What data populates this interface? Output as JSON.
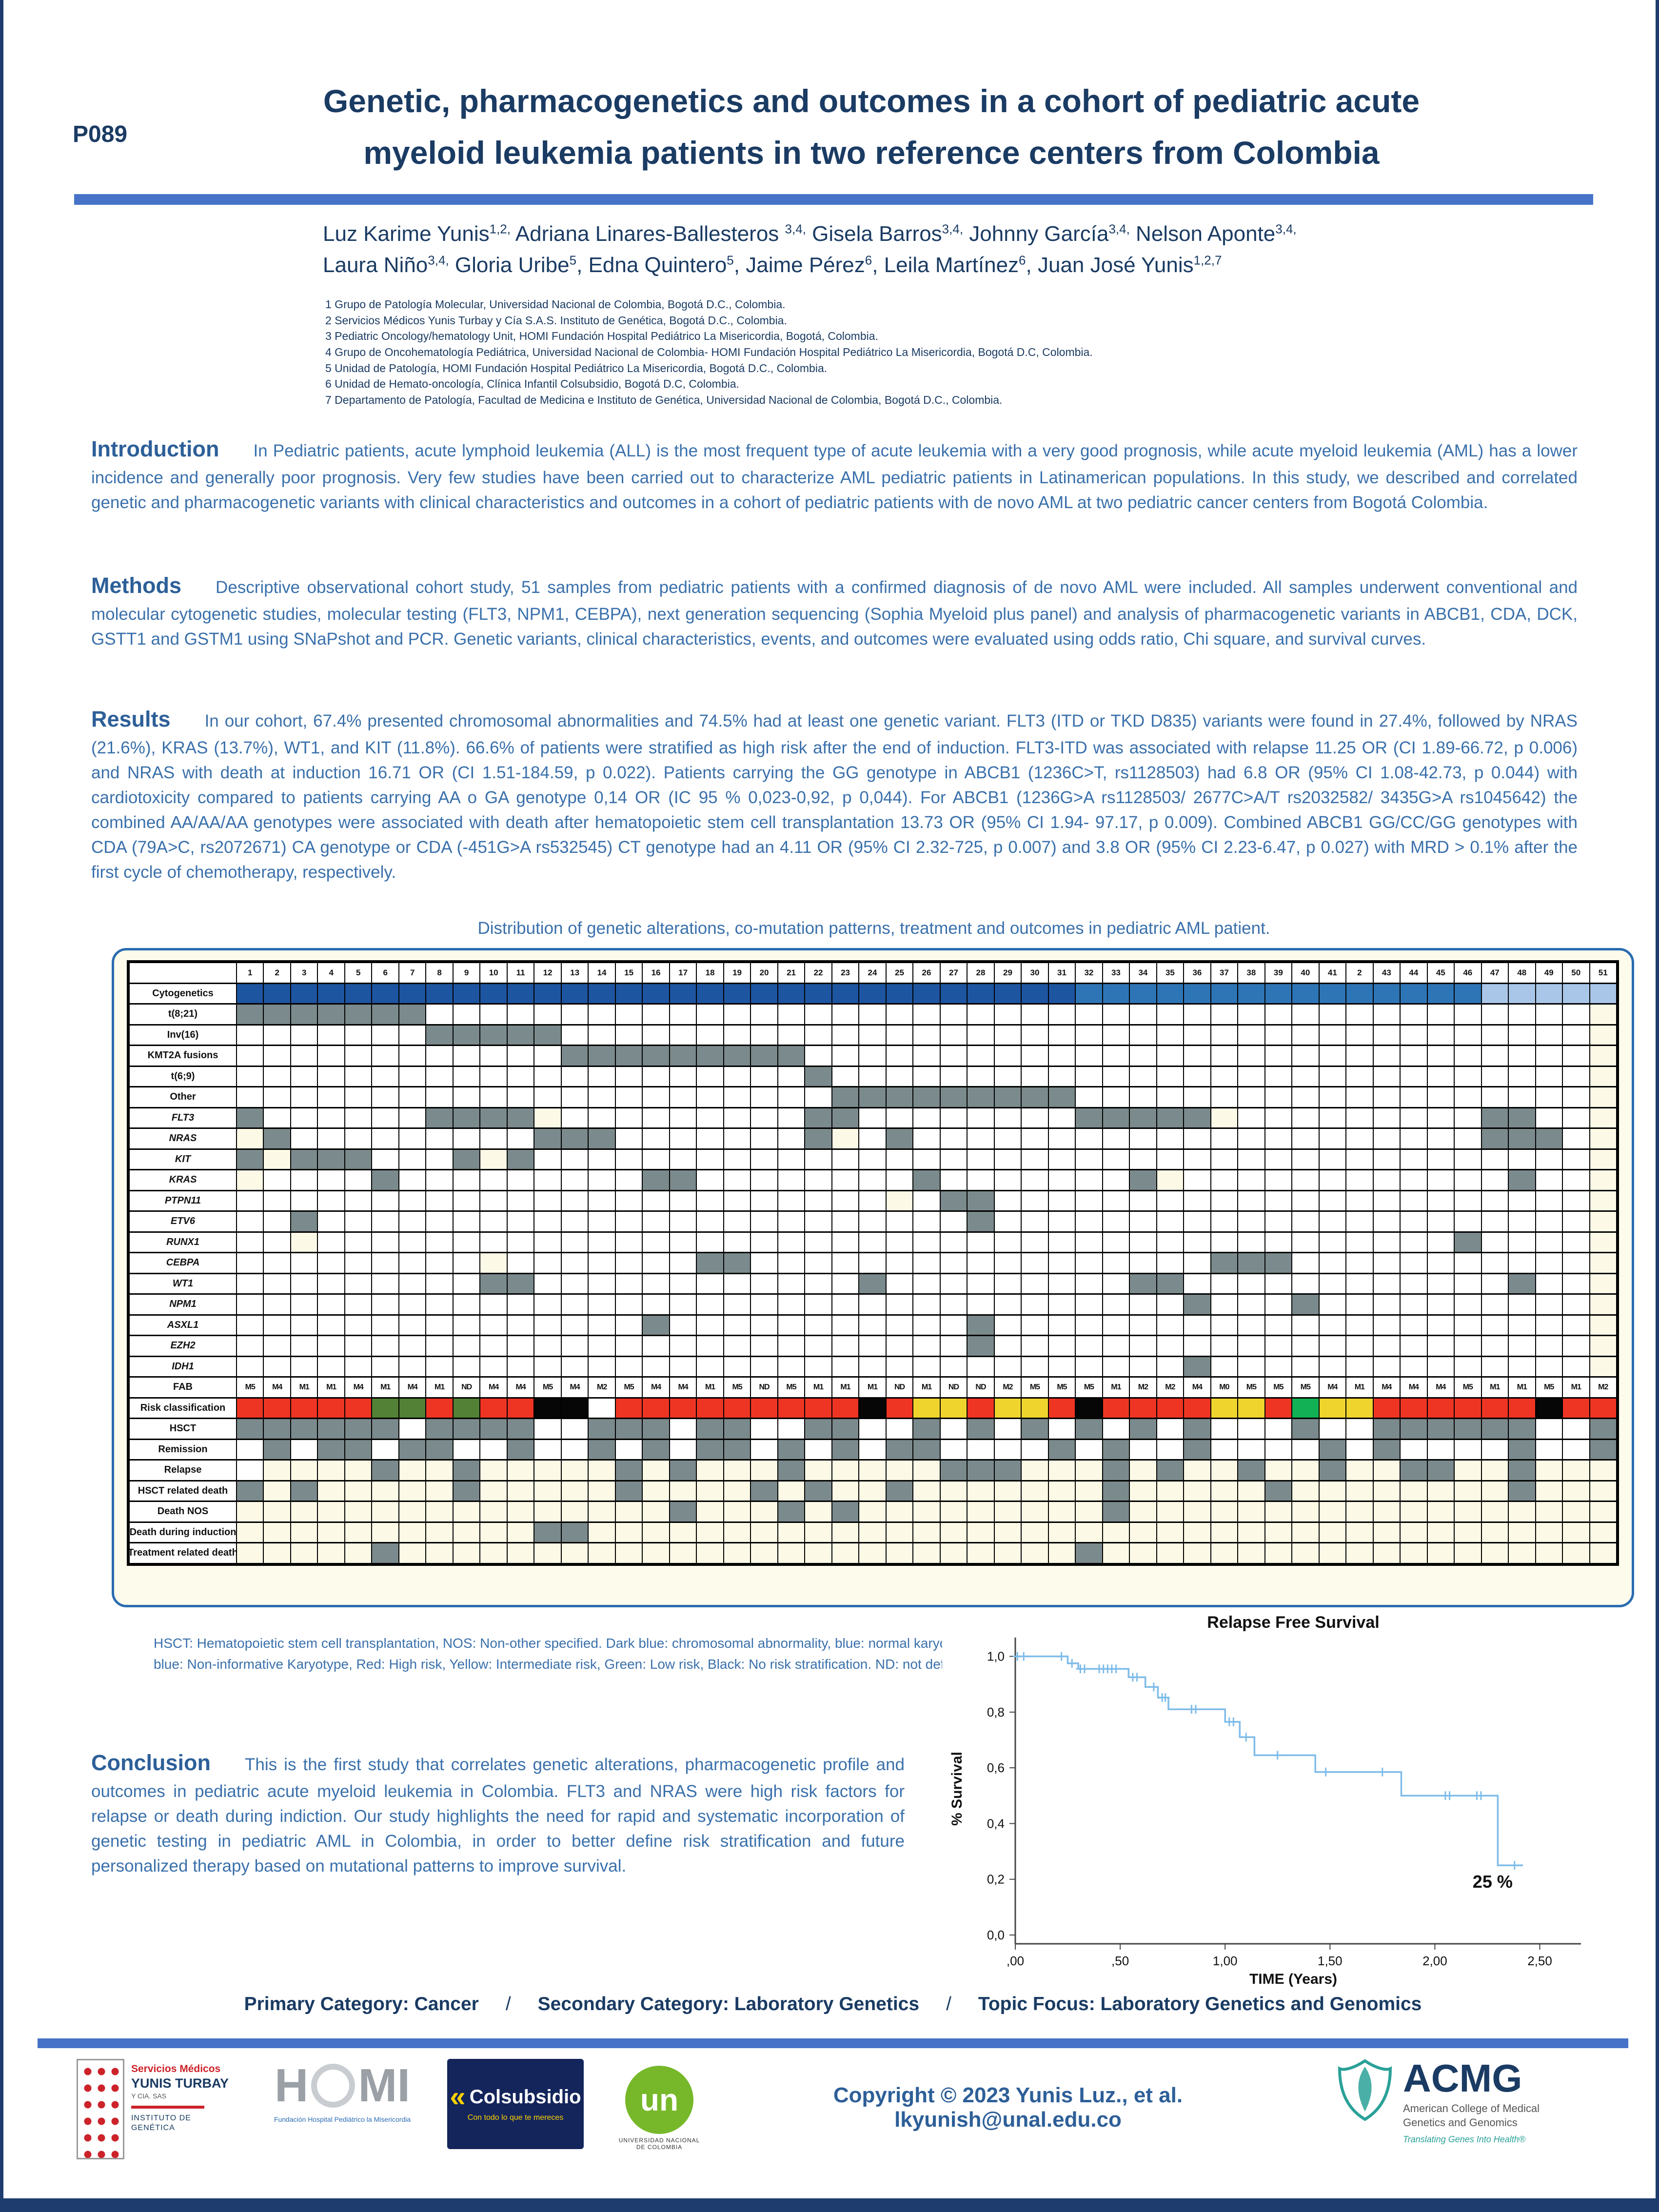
{
  "page": {
    "poster_id": "P089",
    "title_line1": "Genetic, pharmacogenetics and outcomes in a cohort of pediatric acute",
    "title_line2": "myeloid leukemia patients in two reference centers from Colombia"
  },
  "authors": {
    "lines": [
      [
        {
          "t": "Luz Karime Yunis",
          "s": "1,2,",
          "tail": " "
        },
        {
          "t": "Adriana Linares-Ballesteros ",
          "s": "3,4,",
          "tail": " "
        },
        {
          "t": "Gisela Barros",
          "s": "3,4,",
          "tail": " "
        },
        {
          "t": "Johnny García",
          "s": "3,4,",
          "tail": " "
        },
        {
          "t": "Nelson Aponte",
          "s": "3,4,",
          "tail": ""
        }
      ],
      [
        {
          "t": "Laura Niño",
          "s": "3,4,",
          "tail": " "
        },
        {
          "t": "Gloria Uribe",
          "s": "5",
          "tail": ", "
        },
        {
          "t": "Edna Quintero",
          "s": "5",
          "tail": ", "
        },
        {
          "t": "Jaime Pérez",
          "s": "6",
          "tail": ", "
        },
        {
          "t": "Leila Martínez",
          "s": "6",
          "tail": ", "
        },
        {
          "t": "Juan José Yunis",
          "s": "1,2,7",
          "tail": ""
        }
      ]
    ]
  },
  "affiliations": [
    "1 Grupo de Patología Molecular, Universidad Nacional de Colombia, Bogotá D.C., Colombia.",
    "2 Servicios Médicos Yunis Turbay y Cía S.A.S. Instituto de Genética, Bogotá D.C., Colombia.",
    "3 Pediatric Oncology/hematology Unit, HOMI Fundación Hospital Pediátrico La Misericordia, Bogotá, Colombia.",
    "4 Grupo de Oncohematología Pediátrica, Universidad Nacional de Colombia- HOMI Fundación Hospital Pediátrico La Misericordia, Bogotá D.C, Colombia.",
    "5 Unidad de Patología, HOMI Fundación Hospital Pediátrico La Misericordia, Bogotá D.C., Colombia.",
    "6 Unidad de Hemato-oncología, Clínica Infantil Colsubsidio, Bogotá D.C, Colombia.",
    "7 Departamento de Patología, Facultad de Medicina e Instituto de Genética, Universidad Nacional de Colombia, Bogotá D.C., Colombia."
  ],
  "sections": {
    "introduction": {
      "heading": "Introduction",
      "text": "In Pediatric patients, acute lymphoid leukemia (ALL) is the most frequent type of acute leukemia with a very good prognosis, while acute myeloid leukemia (AML) has a lower incidence and generally poor prognosis. Very few studies have been carried out to characterize AML pediatric patients in Latinamerican populations. In this study, we described and correlated genetic and pharmacogenetic variants with clinical characteristics and outcomes in a cohort of pediatric patients with de novo AML at two pediatric cancer centers from Bogotá Colombia."
    },
    "methods": {
      "heading": "Methods",
      "text": "Descriptive observational cohort study, 51 samples from pediatric patients with a confirmed diagnosis of de novo AML were included. All samples underwent conventional and molecular cytogenetic studies, molecular testing (FLT3, NPM1, CEBPA), next generation sequencing (Sophia Myeloid plus panel) and analysis of pharmacogenetic variants in ABCB1, CDA, DCK, GSTT1 and GSTM1 using SNaPshot and PCR. Genetic variants, clinical characteristics, events, and outcomes were evaluated using odds ratio, Chi square, and survival curves."
    },
    "results": {
      "heading": "Results",
      "text": "In our cohort, 67.4% presented chromosomal abnormalities and 74.5% had at least one genetic variant. FLT3 (ITD or TKD D835) variants were found in 27.4%, followed by NRAS (21.6%), KRAS (13.7%), WT1, and KIT (11.8%). 66.6% of patients were stratified as high risk after the end of induction. FLT3-ITD was associated with relapse 11.25 OR (CI 1.89-66.72, p 0.006) and NRAS with death at induction 16.71 OR (CI 1.51-184.59, p 0.022). Patients carrying the GG genotype in ABCB1 (1236C>T, rs1128503) had 6.8 OR (95% CI 1.08-42.73, p 0.044) with cardiotoxicity compared to patients carrying AA o GA genotype 0,14 OR (IC 95 % 0,023-0,92, p 0,044). For ABCB1 (1236G>A rs1128503/ 2677C>A/T rs2032582/ 3435G>A rs1045642) the combined AA/AA/AA genotypes were associated with death after hematopoietic stem cell transplantation 13.73 OR (95% CI 1.94- 97.17, p 0.009). Combined ABCB1 GG/CC/GG genotypes with CDA (79A>C, rs2072671) CA genotype or CDA (-451G>A rs532545) CT genotype had an 4.11 OR (95% CI 2.32-725, p 0.007) and 3.8 OR (95% CI 2.23-6.47, p 0.027) with MRD > 0.1% after the first cycle of chemotherapy, respectively."
    },
    "conclusion": {
      "heading": "Conclusion",
      "text": "This is the first study that correlates genetic alterations, pharmacogenetic profile and outcomes in pediatric acute myeloid leukemia in Colombia. FLT3 and NRAS were high risk factors for relapse or death during indiction. Our study highlights the need for rapid and systematic incorporation of genetic testing in pediatric AML in Colombia, in order to better define risk stratification and future personalized therapy based on mutational patterns to improve survival."
    }
  },
  "figure": {
    "caption": "Distribution of genetic alterations, co-mutation patterns, treatment and outcomes in pediatric AML patient.",
    "legend": "HSCT: Hematopoietic stem cell transplantation, NOS: Non-other specified. Dark blue: chromosomal abnormality, blue: normal karyotype, light blue: Non-informative Karyotype, Red: High risk, Yellow: Intermediate risk, Green: Low risk, Black: No risk stratification. ND: not defined."
  },
  "matrix": {
    "columns": [
      "1",
      "2",
      "3",
      "4",
      "5",
      "6",
      "7",
      "8",
      "9",
      "10",
      "11",
      "12",
      "13",
      "14",
      "15",
      "16",
      "17",
      "18",
      "19",
      "20",
      "21",
      "22",
      "23",
      "24",
      "25",
      "26",
      "27",
      "28",
      "29",
      "30",
      "31",
      "32",
      "33",
      "34",
      "35",
      "36",
      "37",
      "38",
      "39",
      "40",
      "41",
      "2",
      "43",
      "44",
      "45",
      "46",
      "47",
      "48",
      "49",
      "50",
      "51"
    ],
    "colors": {
      ".": "#ffffff",
      "C": "#fcf9e6",
      "G": "#7b8a8c",
      "D": "#1e55a1",
      "B": "#2e75b6",
      "L": "#a9c6e8",
      "R": "#ee3524",
      "Y": "#efd42e",
      "V": "#538135",
      "E": "#13b155",
      "K": "#060606"
    },
    "fab": [
      "M5",
      "M4",
      "M1",
      "M1",
      "M4",
      "M1",
      "M4",
      "M1",
      "ND",
      "M4",
      "M4",
      "M5",
      "M4",
      "M2",
      "M5",
      "M4",
      "M4",
      "M1",
      "M5",
      "ND",
      "M5",
      "M1",
      "M1",
      "M1",
      "ND",
      "M1",
      "ND",
      "ND",
      "M2",
      "M5",
      "M5",
      "M5",
      "M1",
      "M2",
      "M2",
      "M4",
      "M0",
      "M5",
      "M5",
      "M5",
      "M4",
      "M1",
      "M4",
      "M4",
      "M4",
      "M5",
      "M1",
      "M1",
      "M5",
      "M1",
      "M2"
    ],
    "rows": [
      {
        "label": "Cytogenetics",
        "cells": "DDDDDDDDDDDDDDDDDDDDDDDDDDDDDDDBBBBBBBBBBBBBBBLLLLL"
      },
      {
        "label": "t(8;21)",
        "cells": "GGGGGGG...........................................C"
      },
      {
        "label": "Inv(16)",
        "cells": ".......GGGGG......................................C"
      },
      {
        "label": "KMT2A fusions",
        "cells": "............GGGGGGGGG.............................C"
      },
      {
        "label": "t(6;9)",
        "cells": ".....................G............................C"
      },
      {
        "label": "Other",
        "cells": "......................GGGGGGGGG...................C"
      },
      {
        "label": "FLT3",
        "italic": true,
        "cells": "G......GGGGC.........GG........GGGGGC.........GG..C"
      },
      {
        "label": "NRAS",
        "italic": true,
        "cells": "CG.........GGG.......GC.G.....................GGG.C"
      },
      {
        "label": "KIT",
        "italic": true,
        "cells": "GCGGG...GCG.......................................C"
      },
      {
        "label": "KRAS",
        "italic": true,
        "cells": "C....G.........GG........G.......GC............G..C"
      },
      {
        "label": "PTPN11",
        "italic": true,
        "cells": "........................C.GG......................C"
      },
      {
        "label": "ETV6",
        "italic": true,
        "cells": "..G........................G......................C"
      },
      {
        "label": "RUNX1",
        "italic": true,
        "cells": "..C..........................................G....C"
      },
      {
        "label": "CEBPA",
        "italic": true,
        "cells": ".........C.......GG.................GGG...........C"
      },
      {
        "label": "WT1",
        "italic": true,
        "cells": ".........GG............G.........GG............G..C"
      },
      {
        "label": "NPM1",
        "italic": true,
        "cells": "...................................G...G..........C"
      },
      {
        "label": "ASXL1",
        "italic": true,
        "cells": "...............G...........G......................C"
      },
      {
        "label": "EZH2",
        "italic": true,
        "cells": "...........................G......................C"
      },
      {
        "label": "IDH1",
        "italic": true,
        "cells": "...................................G..............C"
      },
      {
        "label": "FAB",
        "type": "fab"
      },
      {
        "label": "Risk classification",
        "cells": "RRRRRVVRVRRKK.RRRRRRRRRKRYYRYYRKRRRRYYREYYRRRRRRKRR"
      },
      {
        "label": "HSCT",
        "cells": "GGGGGG.GGGG..GGG.GG..GG..G.G.G.G.G.G...G..GGGGGG..G"
      },
      {
        "label": "Remission",
        "cells": ".G.GG.GG..G..G.G.GG.G.G.GG....G.G..G....G.G....G..G"
      },
      {
        "label": "Relapse",
        "cells": ".CCCCGCCGCCCCCGCGCCCGCCCCCGGGCCCGCGCCGCCGCCGGCCGCCC"
      },
      {
        "label": "HSCT related death",
        "cells": "GCGCCCCCGCCCCCGCCCCGCGCCGCCCCCCCGCCCCCGCCCCCCCCGCCC"
      },
      {
        "label": "Death NOS",
        "cells": "CCCCCCCCCCCCCCCCGCCCGCGCCCCCCCCCGCCCCCCCCCCCCCCCCCC"
      },
      {
        "label": "Death during induction",
        "cells": "CCCCCCCCCCCGGCCCCCCCCCCCCCCCCCCCCCCCCCCCCCCCCCCCCCC"
      },
      {
        "label": "Treatment related death",
        "cells": "CCCCCGCCCCCCCCCCCCCCCCCCCCCCCCCGCCCCCCCCCCCCCCCCCCC"
      }
    ]
  },
  "chart_data": {
    "type": "line",
    "subtype": "kaplan-meier-step",
    "title": "Relapse Free Survival",
    "xlabel": "TIME (Years)",
    "ylabel": "% Survival",
    "xlim": [
      0,
      2.65
    ],
    "ylim": [
      0,
      1.05
    ],
    "grid": false,
    "legend_position": "none",
    "xticks": {
      "values": [
        0,
        0.5,
        1.0,
        1.5,
        2.0,
        2.5
      ],
      "labels": [
        ",00",
        ",50",
        "1,00",
        "1,50",
        "2,00",
        "2,50"
      ]
    },
    "yticks": {
      "values": [
        0,
        0.2,
        0.4,
        0.6,
        0.8,
        1.0
      ],
      "labels": [
        "0,0",
        "0,2",
        "0,4",
        "0,6",
        "0,8",
        "1,0"
      ]
    },
    "series": [
      {
        "name": "Relapse Free Survival",
        "color": "#7fbce9",
        "steps": [
          [
            0,
            1.0
          ],
          [
            0.25,
            1.0
          ],
          [
            0.25,
            0.975
          ],
          [
            0.3,
            0.975
          ],
          [
            0.3,
            0.955
          ],
          [
            0.54,
            0.955
          ],
          [
            0.54,
            0.925
          ],
          [
            0.62,
            0.925
          ],
          [
            0.62,
            0.89
          ],
          [
            0.68,
            0.89
          ],
          [
            0.68,
            0.852
          ],
          [
            0.73,
            0.852
          ],
          [
            0.73,
            0.81
          ],
          [
            1.0,
            0.81
          ],
          [
            1.0,
            0.765
          ],
          [
            1.07,
            0.765
          ],
          [
            1.07,
            0.71
          ],
          [
            1.14,
            0.71
          ],
          [
            1.14,
            0.645
          ],
          [
            1.43,
            0.645
          ],
          [
            1.43,
            0.585
          ],
          [
            1.84,
            0.585
          ],
          [
            1.84,
            0.5
          ],
          [
            2.3,
            0.5
          ],
          [
            2.3,
            0.25
          ],
          [
            2.42,
            0.25
          ]
        ],
        "censors": [
          [
            0.01,
            1.0
          ],
          [
            0.04,
            1.0
          ],
          [
            0.22,
            1.0
          ],
          [
            0.27,
            0.975
          ],
          [
            0.31,
            0.955
          ],
          [
            0.33,
            0.955
          ],
          [
            0.4,
            0.955
          ],
          [
            0.42,
            0.955
          ],
          [
            0.44,
            0.955
          ],
          [
            0.46,
            0.955
          ],
          [
            0.48,
            0.955
          ],
          [
            0.56,
            0.925
          ],
          [
            0.58,
            0.925
          ],
          [
            0.66,
            0.89
          ],
          [
            0.7,
            0.852
          ],
          [
            0.715,
            0.852
          ],
          [
            0.84,
            0.81
          ],
          [
            0.86,
            0.81
          ],
          [
            1.02,
            0.765
          ],
          [
            1.04,
            0.765
          ],
          [
            1.1,
            0.71
          ],
          [
            1.25,
            0.645
          ],
          [
            1.48,
            0.585
          ],
          [
            1.75,
            0.585
          ],
          [
            2.05,
            0.5
          ],
          [
            2.07,
            0.5
          ],
          [
            2.2,
            0.5
          ],
          [
            2.22,
            0.5
          ],
          [
            2.38,
            0.25
          ]
        ]
      }
    ],
    "annotation": {
      "text": "25 %",
      "x": 2.18,
      "y": 0.17
    }
  },
  "footer": {
    "categories": [
      "Primary Category: Cancer",
      "Secondary Category: Laboratory Genetics",
      "Topic Focus: Laboratory Genetics and Genomics"
    ],
    "separator": "/",
    "copyright": "Copyright © 2023 Yunis Luz., et al. lkyunish@unal.edu.co",
    "logos": {
      "yunis": {
        "line1": "Servicios Médicos",
        "line2": "YUNIS TURBAY",
        "line3": "Y CIA. SAS",
        "line4": "INSTITUTO DE GENÉTICA"
      },
      "homi": {
        "left": "H",
        "right": "MI",
        "caption": "Fundación Hospital Pediátrico la Misericordia"
      },
      "colsubsidio": {
        "chevron": "«",
        "name": "Colsubsidio",
        "tagline": "Con todo lo que te mereces"
      },
      "un": {
        "name": "un",
        "caption": "UNIVERSIDAD NACIONAL DE COLOMBIA"
      },
      "acmg": {
        "name": "ACMG",
        "line1": "American College of Medical",
        "line2": "Genetics and Genomics",
        "tagline": "Translating Genes Into Health®"
      }
    }
  }
}
